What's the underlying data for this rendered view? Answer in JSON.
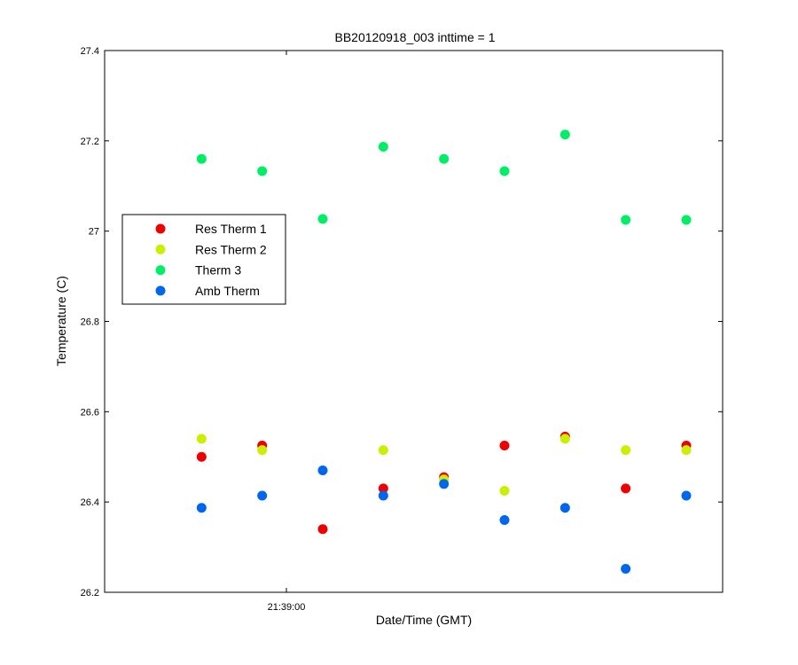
{
  "chart_data": {
    "type": "scatter",
    "title": "BB20120918_003 inttime = 1",
    "xlabel": "Date/Time (GMT)",
    "ylabel": "Temperature (C)",
    "ylim": [
      26.2,
      27.4
    ],
    "yticks": [
      26.2,
      26.4,
      26.6,
      26.8,
      27,
      27.2,
      27.4
    ],
    "ytick_labels": [
      "26.2",
      "26.4",
      "26.6",
      "26.8",
      "27",
      "27.2",
      "27.4"
    ],
    "xlim": [
      "21:38:45",
      "21:39:36"
    ],
    "xticks": [
      "21:39:00"
    ],
    "xtick_labels": [
      "21:39:00"
    ],
    "grid": false,
    "legend_position": "left",
    "x": [
      "21:38:53",
      "21:38:58",
      "21:39:03",
      "21:39:08",
      "21:39:13",
      "21:39:18",
      "21:39:23",
      "21:39:28",
      "21:39:33"
    ],
    "series": [
      {
        "name": "Res Therm 1",
        "color": "#ee0000",
        "values": [
          26.5,
          26.525,
          26.34,
          26.43,
          26.455,
          26.525,
          26.545,
          26.43,
          26.525
        ]
      },
      {
        "name": "Res Therm 2",
        "color": "#ccee00",
        "values": [
          26.54,
          26.515,
          null,
          26.515,
          26.45,
          26.425,
          26.54,
          26.515,
          26.515
        ]
      },
      {
        "name": "Therm 3",
        "color": "#00ee66",
        "values": [
          27.16,
          27.133,
          27.027,
          27.187,
          27.16,
          27.133,
          27.214,
          27.025,
          27.025
        ]
      },
      {
        "name": "Amb Therm",
        "color": "#0066ee",
        "values": [
          26.387,
          26.414,
          26.47,
          26.414,
          26.44,
          26.36,
          26.387,
          26.252,
          26.414
        ]
      }
    ]
  }
}
